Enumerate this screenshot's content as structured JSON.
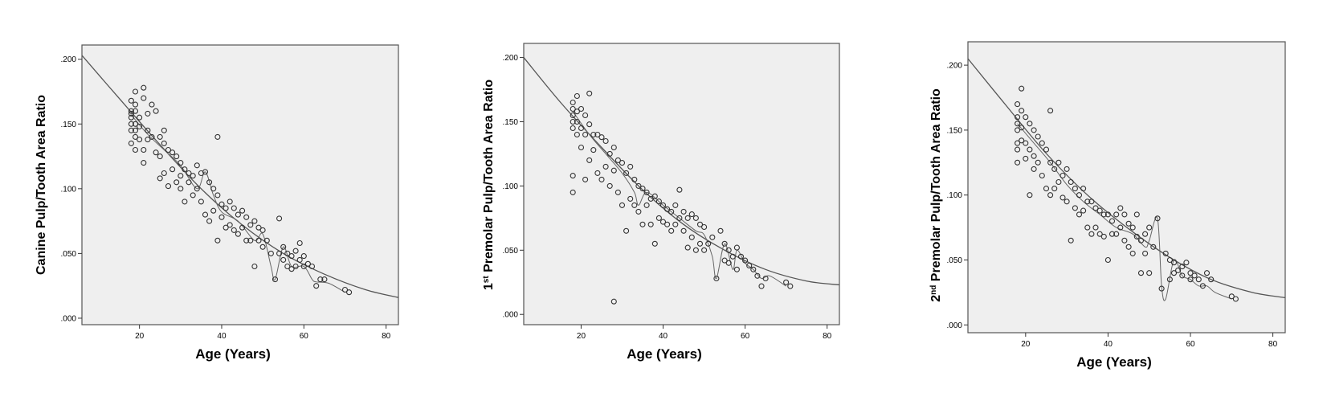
{
  "chart_data": [
    {
      "type": "scatter",
      "xlabel": "Age (Years)",
      "ylabel": "Canine Pulp/Tooth Area Ratio",
      "xlim": [
        6,
        83
      ],
      "ylim": [
        -0.005,
        0.211
      ],
      "xticks": [
        20,
        40,
        60,
        80
      ],
      "xtick_labels": [
        "20",
        "40",
        "60",
        "80"
      ],
      "yticks": [
        0.0,
        0.05,
        0.1,
        0.15,
        0.2
      ],
      "ytick_labels": [
        ".000",
        ".050",
        ".100",
        ".150",
        ".200"
      ],
      "grid": false,
      "fit_curve": {
        "x": [
          6,
          15,
          25,
          35,
          45,
          55,
          65,
          75,
          83
        ],
        "y": [
          0.203,
          0.17,
          0.134,
          0.1,
          0.072,
          0.05,
          0.034,
          0.022,
          0.016
        ]
      },
      "local_smooth": {
        "x": [
          18,
          22,
          26,
          30,
          34,
          36,
          38,
          40,
          44,
          48,
          50,
          52,
          53,
          55,
          57,
          60,
          62,
          63,
          66,
          70
        ],
        "y": [
          0.157,
          0.142,
          0.13,
          0.118,
          0.1,
          0.113,
          0.095,
          0.082,
          0.075,
          0.06,
          0.065,
          0.04,
          0.03,
          0.055,
          0.04,
          0.04,
          0.03,
          0.028,
          0.027,
          0.02
        ]
      },
      "series": [
        {
          "x": [
            18,
            18,
            18,
            18,
            18,
            18,
            18,
            19,
            19,
            19,
            19,
            19,
            19,
            19,
            20,
            20,
            20,
            21,
            21,
            21,
            21,
            22,
            22,
            22,
            23,
            23,
            24,
            24,
            25,
            25,
            25,
            26,
            26,
            26,
            27,
            27,
            28,
            28,
            29,
            29,
            30,
            30,
            30,
            31,
            31,
            32,
            32,
            33,
            33,
            34,
            34,
            35,
            35,
            36,
            36,
            37,
            37,
            38,
            38,
            39,
            39,
            39,
            40,
            40,
            41,
            41,
            42,
            42,
            43,
            43,
            44,
            44,
            45,
            45,
            46,
            46,
            47,
            47,
            48,
            48,
            49,
            49,
            50,
            50,
            51,
            52,
            53,
            54,
            54,
            55,
            55,
            56,
            56,
            57,
            57,
            58,
            58,
            59,
            59,
            60,
            60,
            61,
            62,
            63,
            64,
            65,
            70,
            71
          ],
          "y": [
            0.16,
            0.155,
            0.15,
            0.145,
            0.168,
            0.135,
            0.158,
            0.175,
            0.165,
            0.15,
            0.14,
            0.16,
            0.145,
            0.13,
            0.155,
            0.148,
            0.138,
            0.178,
            0.17,
            0.13,
            0.12,
            0.158,
            0.145,
            0.138,
            0.165,
            0.14,
            0.16,
            0.128,
            0.14,
            0.125,
            0.108,
            0.145,
            0.135,
            0.112,
            0.13,
            0.102,
            0.128,
            0.115,
            0.125,
            0.105,
            0.12,
            0.11,
            0.1,
            0.115,
            0.09,
            0.112,
            0.105,
            0.11,
            0.095,
            0.118,
            0.1,
            0.112,
            0.09,
            0.113,
            0.08,
            0.105,
            0.075,
            0.1,
            0.083,
            0.14,
            0.095,
            0.06,
            0.088,
            0.078,
            0.085,
            0.07,
            0.09,
            0.072,
            0.085,
            0.068,
            0.08,
            0.065,
            0.083,
            0.07,
            0.078,
            0.06,
            0.072,
            0.06,
            0.075,
            0.04,
            0.07,
            0.06,
            0.068,
            0.055,
            0.06,
            0.05,
            0.03,
            0.077,
            0.05,
            0.055,
            0.045,
            0.05,
            0.04,
            0.048,
            0.038,
            0.052,
            0.04,
            0.058,
            0.045,
            0.048,
            0.04,
            0.042,
            0.04,
            0.025,
            0.03,
            0.03,
            0.022,
            0.02
          ]
        }
      ]
    },
    {
      "type": "scatter",
      "xlabel": "Age (Years)",
      "ylabel_prefix": "1",
      "ylabel_sup": "st",
      "ylabel_rest": " Premolar Pulp/Tooth Area Ratio",
      "xlim": [
        6,
        83
      ],
      "ylim": [
        -0.008,
        0.211
      ],
      "xticks": [
        20,
        40,
        60,
        80
      ],
      "xtick_labels": [
        "20",
        "40",
        "60",
        "80"
      ],
      "yticks": [
        0.0,
        0.05,
        0.1,
        0.15,
        0.2
      ],
      "ytick_labels": [
        ".000",
        ".050",
        ".100",
        ".150",
        ".200"
      ],
      "grid": false,
      "fit_curve": {
        "x": [
          6,
          15,
          25,
          35,
          45,
          55,
          65,
          75,
          83
        ],
        "y": [
          0.2,
          0.165,
          0.13,
          0.097,
          0.07,
          0.05,
          0.035,
          0.026,
          0.023
        ]
      },
      "local_smooth": {
        "x": [
          18,
          22,
          26,
          30,
          33,
          34,
          36,
          40,
          44,
          48,
          50,
          52,
          53,
          55,
          57,
          58,
          60,
          62,
          64,
          66,
          70
        ],
        "y": [
          0.158,
          0.14,
          0.125,
          0.11,
          0.095,
          0.085,
          0.095,
          0.085,
          0.075,
          0.065,
          0.062,
          0.045,
          0.028,
          0.055,
          0.035,
          0.05,
          0.04,
          0.035,
          0.028,
          0.03,
          0.022
        ]
      },
      "series": [
        {
          "x": [
            18,
            18,
            18,
            18,
            18,
            18,
            18,
            19,
            19,
            19,
            19,
            20,
            20,
            20,
            21,
            21,
            21,
            22,
            22,
            22,
            23,
            23,
            24,
            24,
            25,
            25,
            26,
            26,
            27,
            27,
            28,
            28,
            28,
            29,
            29,
            30,
            30,
            31,
            31,
            32,
            32,
            33,
            33,
            34,
            34,
            35,
            35,
            36,
            36,
            37,
            37,
            38,
            38,
            39,
            39,
            40,
            40,
            41,
            41,
            42,
            42,
            43,
            43,
            44,
            44,
            45,
            45,
            46,
            46,
            47,
            47,
            48,
            48,
            49,
            49,
            50,
            50,
            51,
            52,
            53,
            54,
            55,
            55,
            56,
            56,
            57,
            58,
            58,
            59,
            60,
            61,
            62,
            63,
            64,
            65,
            70,
            71
          ],
          "y": [
            0.165,
            0.16,
            0.155,
            0.15,
            0.145,
            0.108,
            0.095,
            0.17,
            0.158,
            0.15,
            0.14,
            0.16,
            0.145,
            0.13,
            0.155,
            0.14,
            0.105,
            0.172,
            0.148,
            0.12,
            0.14,
            0.128,
            0.14,
            0.11,
            0.138,
            0.105,
            0.135,
            0.115,
            0.125,
            0.1,
            0.13,
            0.112,
            0.01,
            0.12,
            0.095,
            0.118,
            0.085,
            0.11,
            0.065,
            0.115,
            0.09,
            0.105,
            0.085,
            0.1,
            0.08,
            0.098,
            0.07,
            0.095,
            0.085,
            0.09,
            0.07,
            0.092,
            0.055,
            0.088,
            0.075,
            0.085,
            0.072,
            0.082,
            0.07,
            0.08,
            0.065,
            0.085,
            0.07,
            0.097,
            0.075,
            0.08,
            0.065,
            0.075,
            0.052,
            0.078,
            0.06,
            0.075,
            0.05,
            0.07,
            0.055,
            0.068,
            0.05,
            0.055,
            0.06,
            0.028,
            0.065,
            0.055,
            0.042,
            0.05,
            0.04,
            0.045,
            0.052,
            0.035,
            0.045,
            0.042,
            0.038,
            0.035,
            0.03,
            0.022,
            0.028,
            0.025,
            0.022
          ]
        }
      ]
    },
    {
      "type": "scatter",
      "xlabel": "Age (Years)",
      "ylabel_prefix": "2",
      "ylabel_sup": "nd",
      "ylabel_rest": " Premolar Pulp/Tooth Area Ratio",
      "xlim": [
        6,
        83
      ],
      "ylim": [
        -0.006,
        0.218
      ],
      "xticks": [
        20,
        40,
        60,
        80
      ],
      "xtick_labels": [
        "20",
        "40",
        "60",
        "80"
      ],
      "yticks": [
        0.0,
        0.05,
        0.1,
        0.15,
        0.2
      ],
      "ytick_labels": [
        ".000",
        ".050",
        ".100",
        ".150",
        ".200"
      ],
      "grid": false,
      "fit_curve": {
        "x": [
          6,
          15,
          25,
          35,
          45,
          55,
          65,
          75,
          83
        ],
        "y": [
          0.205,
          0.17,
          0.132,
          0.1,
          0.074,
          0.052,
          0.035,
          0.025,
          0.021
        ]
      },
      "local_smooth": {
        "x": [
          18,
          22,
          26,
          30,
          34,
          38,
          42,
          46,
          49,
          50,
          52,
          53,
          54,
          56,
          58,
          60,
          62,
          64,
          66,
          70
        ],
        "y": [
          0.155,
          0.14,
          0.125,
          0.108,
          0.095,
          0.085,
          0.075,
          0.07,
          0.06,
          0.065,
          0.082,
          0.03,
          0.02,
          0.05,
          0.038,
          0.035,
          0.03,
          0.03,
          0.025,
          0.02
        ]
      },
      "series": [
        {
          "x": [
            18,
            18,
            18,
            18,
            18,
            18,
            18,
            19,
            19,
            19,
            19,
            20,
            20,
            20,
            21,
            21,
            21,
            22,
            22,
            22,
            23,
            23,
            24,
            24,
            25,
            25,
            26,
            26,
            26,
            27,
            27,
            28,
            28,
            29,
            29,
            30,
            30,
            31,
            31,
            32,
            32,
            33,
            33,
            34,
            34,
            35,
            35,
            36,
            36,
            37,
            37,
            38,
            38,
            39,
            39,
            40,
            40,
            41,
            41,
            42,
            42,
            43,
            43,
            44,
            44,
            45,
            45,
            46,
            46,
            47,
            47,
            48,
            48,
            49,
            49,
            50,
            50,
            51,
            52,
            53,
            54,
            55,
            55,
            56,
            56,
            57,
            58,
            58,
            59,
            60,
            60,
            61,
            62,
            63,
            64,
            65,
            70,
            71
          ],
          "y": [
            0.17,
            0.16,
            0.155,
            0.15,
            0.14,
            0.135,
            0.125,
            0.182,
            0.165,
            0.152,
            0.142,
            0.16,
            0.14,
            0.128,
            0.155,
            0.135,
            0.1,
            0.15,
            0.13,
            0.12,
            0.145,
            0.125,
            0.14,
            0.115,
            0.135,
            0.105,
            0.165,
            0.125,
            0.1,
            0.12,
            0.105,
            0.125,
            0.11,
            0.115,
            0.098,
            0.12,
            0.095,
            0.11,
            0.065,
            0.105,
            0.09,
            0.1,
            0.085,
            0.105,
            0.088,
            0.095,
            0.075,
            0.095,
            0.07,
            0.09,
            0.075,
            0.088,
            0.07,
            0.085,
            0.068,
            0.085,
            0.05,
            0.08,
            0.07,
            0.085,
            0.07,
            0.09,
            0.075,
            0.085,
            0.065,
            0.078,
            0.06,
            0.075,
            0.055,
            0.085,
            0.068,
            0.065,
            0.04,
            0.07,
            0.055,
            0.075,
            0.04,
            0.06,
            0.082,
            0.028,
            0.055,
            0.05,
            0.035,
            0.048,
            0.04,
            0.042,
            0.045,
            0.038,
            0.048,
            0.04,
            0.035,
            0.038,
            0.035,
            0.03,
            0.04,
            0.035,
            0.022,
            0.02
          ]
        }
      ]
    }
  ]
}
